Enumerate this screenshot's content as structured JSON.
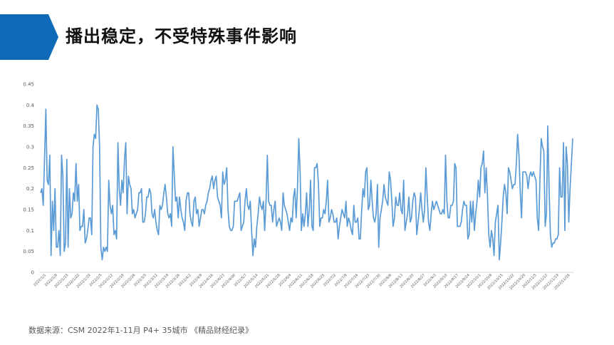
{
  "slide": {
    "title": "播出稳定，不受特殊事件影响",
    "source": "数据来源：CSM 2022年1-11月 P4+ 35城市 《精品财经纪录》",
    "accent_color": "#0f6bb8"
  },
  "chart_data": {
    "type": "line",
    "title": "",
    "xlabel": "",
    "ylabel": "",
    "ylim": [
      0,
      0.45
    ],
    "yticks": [
      "0",
      "0.05",
      "0.1",
      "0.15",
      "0.2",
      "0.25",
      "0.3",
      "0.35",
      "0.4",
      "0.45"
    ],
    "xtick_labels": [
      "2022/1/1",
      "2022/1/8",
      "2022/1/15",
      "2022/1/22",
      "2022/1/29",
      "2022/2/5",
      "2022/2/12",
      "2022/2/19",
      "2022/2/26",
      "2022/3/5",
      "2022/3/12",
      "2022/3/19",
      "2022/3/26",
      "2022/4/2",
      "2022/4/9",
      "2022/4/16",
      "2022/4/23",
      "2022/4/30",
      "2022/5/7",
      "2022/5/14",
      "2022/5/21",
      "2022/5/28",
      "2022/6/4",
      "2022/6/11",
      "2022/6/18",
      "2022/6/25",
      "2022/7/2",
      "2022/7/9",
      "2022/7/16",
      "2022/7/23",
      "2022/7/30",
      "2022/8/6",
      "2022/8/13",
      "2022/8/20",
      "2022/8/27",
      "2022/9/3",
      "2022/9/10",
      "2022/9/17",
      "2022/9/24",
      "2022/10/1",
      "2022/10/8",
      "2022/10/15",
      "2022/10/22",
      "2022/10/29",
      "2022/11/5",
      "2022/11/12",
      "2022/11/19",
      "2022/11/26"
    ],
    "grid": false,
    "series": [
      {
        "color": "#5b9bd5",
        "values": [
          0.19,
          0.2,
          0.16,
          0.27,
          0.39,
          0.22,
          0.21,
          0.28,
          0.04,
          0.17,
          0.1,
          0.2,
          0.06,
          0.06,
          0.1,
          0.04,
          0.28,
          0.23,
          0.05,
          0.07,
          0.27,
          0.06,
          0.2,
          0.13,
          0.14,
          0.19,
          0.17,
          0.26,
          0.17,
          0.21,
          0.1,
          0.11,
          0.11,
          0.15,
          0.07,
          0.08,
          0.1,
          0.13,
          0.13,
          0.09,
          0.3,
          0.33,
          0.32,
          0.4,
          0.39,
          0.3,
          0.06,
          0.03,
          0.06,
          0.05,
          0.06,
          0.05,
          0.22,
          0.16,
          0.14,
          0.16,
          0.09,
          0.1,
          0.08,
          0.31,
          0.2,
          0.16,
          0.22,
          0.19,
          0.27,
          0.31,
          0.14,
          0.23,
          0.21,
          0.2,
          0.14,
          0.15,
          0.13,
          0.14,
          0.15,
          0.19,
          0.19,
          0.2,
          0.12,
          0.12,
          0.14,
          0.18,
          0.18,
          0.2,
          0.19,
          0.14,
          0.13,
          0.15,
          0.12,
          0.1,
          0.09,
          0.16,
          0.15,
          0.16,
          0.19,
          0.21,
          0.18,
          0.14,
          0.13,
          0.14,
          0.11,
          0.3,
          0.23,
          0.17,
          0.18,
          0.13,
          0.18,
          0.15,
          0.13,
          0.12,
          0.1,
          0.17,
          0.19,
          0.19,
          0.14,
          0.12,
          0.11,
          0.17,
          0.18,
          0.14,
          0.15,
          0.11,
          0.13,
          0.15,
          0.15,
          0.14,
          0.16,
          0.17,
          0.19,
          0.2,
          0.22,
          0.23,
          0.2,
          0.22,
          0.23,
          0.18,
          0.17,
          0.16,
          0.13,
          0.24,
          0.21,
          0.22,
          0.25,
          0.15,
          0.11,
          0.1,
          0.1,
          0.11,
          0.17,
          0.17,
          0.17,
          0.18,
          0.19,
          0.1,
          0.11,
          0.12,
          0.17,
          0.2,
          0.16,
          0.15,
          0.17,
          0.1,
          0.04,
          0.08,
          0.06,
          0.11,
          0.14,
          0.18,
          0.16,
          0.15,
          0.17,
          0.1,
          0.17,
          0.28,
          0.17,
          0.16,
          0.16,
          0.12,
          0.15,
          0.17,
          0.11,
          0.12,
          0.13,
          0.12,
          0.1,
          0.19,
          0.16,
          0.15,
          0.14,
          0.12,
          0.1,
          0.13,
          0.12,
          0.18,
          0.2,
          0.13,
          0.2,
          0.32,
          0.24,
          0.1,
          0.14,
          0.11,
          0.14,
          0.19,
          0.11,
          0.15,
          0.22,
          0.11,
          0.1,
          0.25,
          0.25,
          0.26,
          0.21,
          0.11,
          0.13,
          0.13,
          0.15,
          0.14,
          0.17,
          0.22,
          0.12,
          0.13,
          0.15,
          0.14,
          0.12,
          0.12,
          0.13,
          0.08,
          0.11,
          0.13,
          0.15,
          0.14,
          0.13,
          0.17,
          0.11,
          0.13,
          0.12,
          0.1,
          0.09,
          0.16,
          0.12,
          0.12,
          0.13,
          0.08,
          0.08,
          0.15,
          0.2,
          0.18,
          0.24,
          0.25,
          0.15,
          0.16,
          0.22,
          0.17,
          0.13,
          0.12,
          0.14,
          0.21,
          0.06,
          0.13,
          0.15,
          0.17,
          0.21,
          0.18,
          0.17,
          0.16,
          0.24,
          0.22,
          0.17,
          0.11,
          0.13,
          0.18,
          0.16,
          0.16,
          0.19,
          0.15,
          0.14,
          0.22,
          0.1,
          0.12,
          0.14,
          0.18,
          0.12,
          0.13,
          0.17,
          0.19,
          0.18,
          0.09,
          0.12,
          0.15,
          0.19,
          0.15,
          0.12,
          0.15,
          0.25,
          0.18,
          0.12,
          0.1,
          0.14,
          0.17,
          0.15,
          0.16,
          0.17,
          0.16,
          0.15,
          0.14,
          0.14,
          0.15,
          0.14,
          0.28,
          0.17,
          0.13,
          0.13,
          0.16,
          0.16,
          0.17,
          0.26,
          0.25,
          0.11,
          0.11,
          0.11,
          0.12,
          0.15,
          0.17,
          0.16,
          0.16,
          0.08,
          0.09,
          0.17,
          0.12,
          0.17,
          0.1,
          0.14,
          0.17,
          0.22,
          0.18,
          0.25,
          0.26,
          0.29,
          0.19,
          0.25,
          0.18,
          0.09,
          0.06,
          0.1,
          0.08,
          0.04,
          0.12,
          0.14,
          0.16,
          0.03,
          0.07,
          0.12,
          0.18,
          0.21,
          0.19,
          0.14,
          0.25,
          0.24,
          0.22,
          0.2,
          0.21,
          0.21,
          0.26,
          0.33,
          0.28,
          0.19,
          0.13,
          0.24,
          0.24,
          0.24,
          0.23,
          0.2,
          0.23,
          0.24,
          0.23,
          0.24,
          0.23,
          0.22,
          0.13,
          0.1,
          0.22,
          0.32,
          0.3,
          0.29,
          0.11,
          0.14,
          0.35,
          0.2,
          0.09,
          0.06,
          0.07,
          0.07,
          0.08,
          0.08,
          0.09,
          0.25,
          0.18,
          0.18,
          0.31,
          0.1,
          0.3,
          0.26,
          0.12,
          0.2,
          0.26,
          0.32
        ]
      }
    ]
  }
}
